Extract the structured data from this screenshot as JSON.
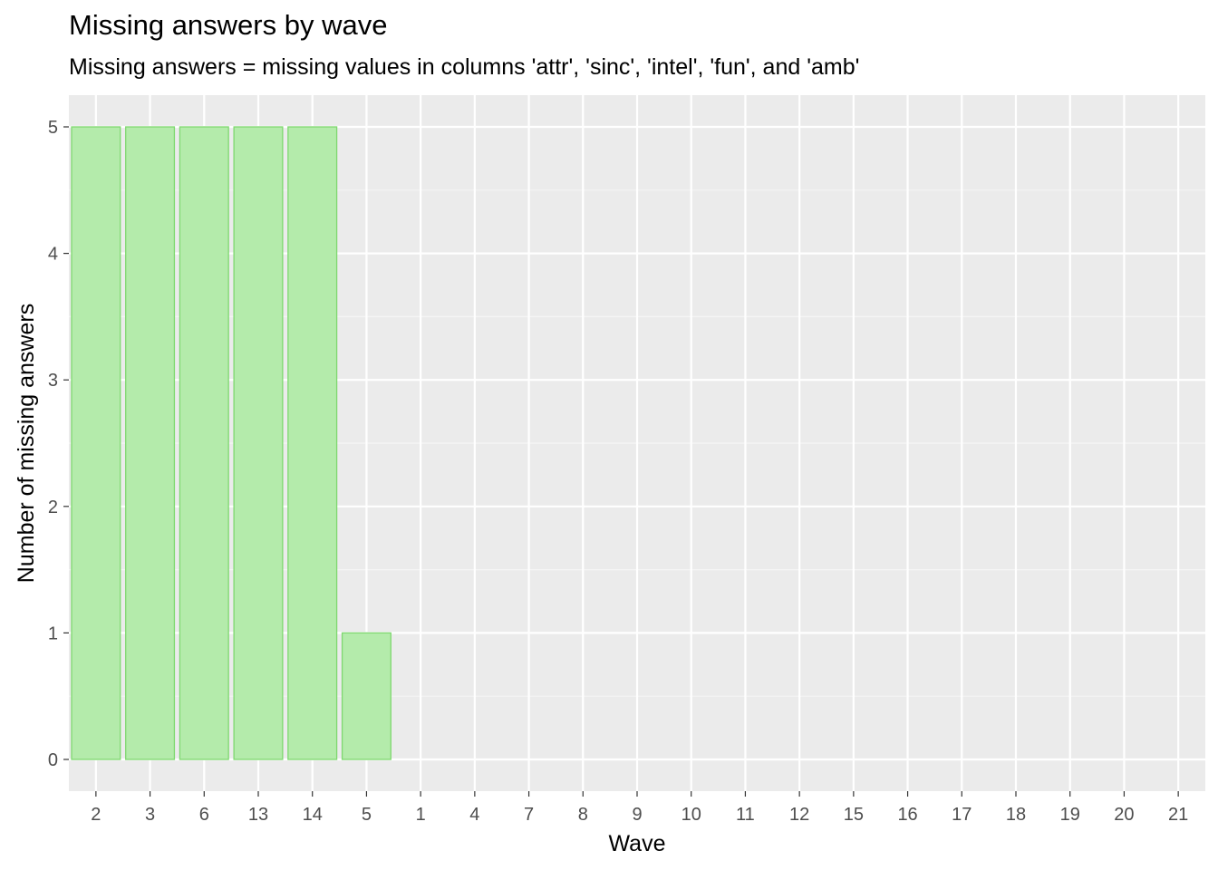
{
  "chart_data": {
    "type": "bar",
    "title": "Missing answers by wave",
    "subtitle": "Missing answers = missing values in columns 'attr', 'sinc', 'intel', 'fun', and 'amb'",
    "xlabel": "Wave",
    "ylabel": "Number of missing answers",
    "categories": [
      "2",
      "3",
      "6",
      "13",
      "14",
      "5",
      "1",
      "4",
      "7",
      "8",
      "9",
      "10",
      "11",
      "12",
      "15",
      "16",
      "17",
      "18",
      "19",
      "20",
      "21"
    ],
    "values": [
      5,
      5,
      5,
      5,
      5,
      1,
      0,
      0,
      0,
      0,
      0,
      0,
      0,
      0,
      0,
      0,
      0,
      0,
      0,
      0,
      0
    ],
    "ylim": [
      0,
      5
    ],
    "yticks": [
      0,
      1,
      2,
      3,
      4,
      5
    ],
    "grid": true,
    "legend": "none",
    "colors": {
      "bar_fill": "#b4ebab",
      "bar_stroke": "#7fd870",
      "panel_bg": "#ebebeb",
      "grid_major": "#ffffff",
      "grid_minor": "#f5f5f5"
    }
  }
}
